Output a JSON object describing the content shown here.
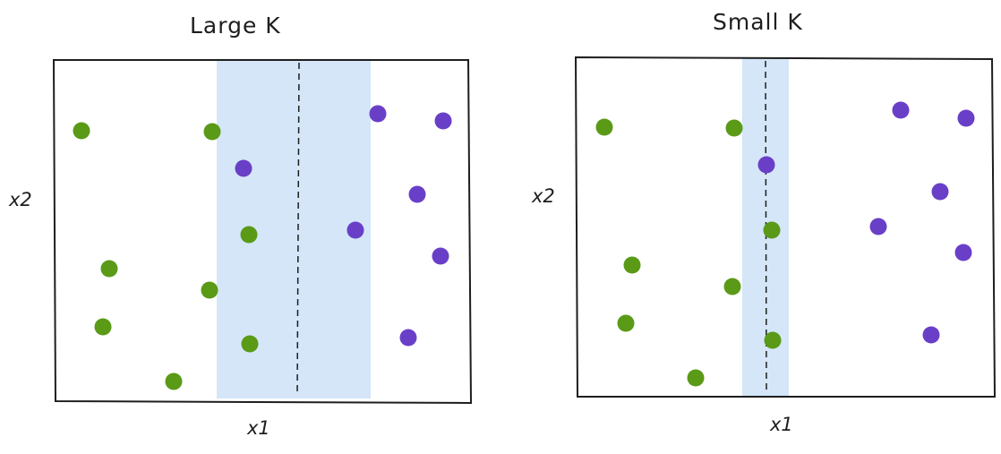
{
  "palette": {
    "green": "#5a9a17",
    "purple": "#6a3fc8",
    "margin_band": "#d4e6f8",
    "stroke": "#1e1e1e"
  },
  "panels": [
    {
      "title": "Large K",
      "xlabel": "x1",
      "ylabel": "x2",
      "margin_width": "wide"
    },
    {
      "title": "Small K",
      "xlabel": "x1",
      "ylabel": "x2",
      "margin_width": "narrow"
    }
  ]
}
